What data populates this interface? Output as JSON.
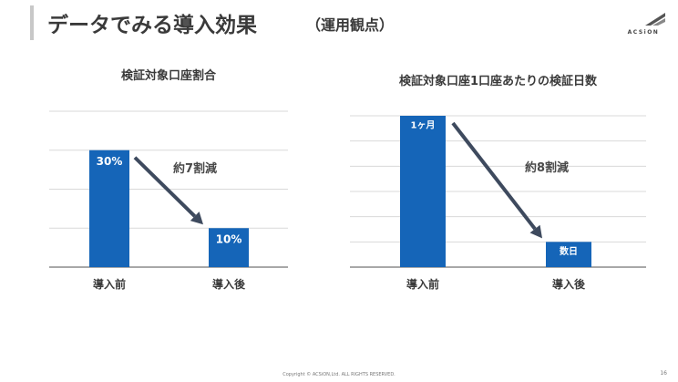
{
  "slide": {
    "title": "データでみる導入効果",
    "subtitle": "（運用観点）",
    "logo_text": "ACSiON",
    "footer": "Copyright © ACSiON,Ltd. ALL RIGHTS RESERVED.",
    "page_number": "16"
  },
  "colors": {
    "bar": "#1565b8",
    "arrow": "#3e4a5e",
    "grid": "#d9d9d9",
    "axis": "#8c8c8c"
  },
  "chart_data": [
    {
      "type": "bar",
      "title": "検証対象口座割合",
      "categories": [
        "導入前",
        "導入後"
      ],
      "values": [
        30,
        10
      ],
      "data_labels": [
        "30%",
        "10%"
      ],
      "annotation": "約7割減",
      "ylim": [
        0,
        40
      ],
      "grid": true
    },
    {
      "type": "bar",
      "title": "検証対象口座1口座あたりの検証日数",
      "categories": [
        "導入前",
        "導入後"
      ],
      "values": [
        30,
        5
      ],
      "data_labels": [
        "1ヶ月",
        "数日"
      ],
      "annotation": "約8割減",
      "ylim": [
        0,
        30
      ],
      "grid": true
    }
  ]
}
